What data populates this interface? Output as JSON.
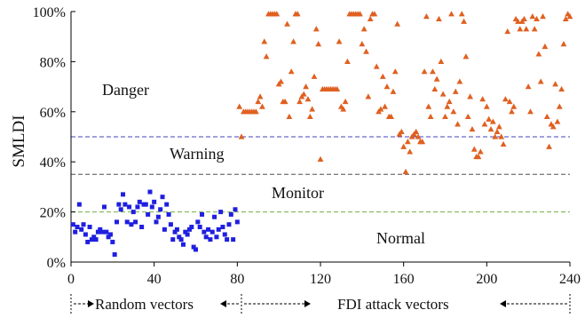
{
  "chart_data": {
    "type": "scatter",
    "ylabel": "SMLDI",
    "xlim": [
      0,
      240
    ],
    "ylim": [
      0,
      100
    ],
    "x_ticks": [
      "0",
      "40",
      "80",
      "120",
      "160",
      "200",
      "240"
    ],
    "y_ticks": [
      "0%",
      "20%",
      "40%",
      "60%",
      "80%",
      "100%"
    ],
    "legend": "none",
    "grid": false,
    "thresholds": [
      {
        "value": 50,
        "color": "#4040c0"
      },
      {
        "value": 35,
        "color": "#505050"
      },
      {
        "value": 20,
        "color": "#70b040"
      }
    ],
    "zone_labels": [
      "Danger",
      "Warning",
      "Monitor",
      "Normal"
    ],
    "group_labels": [
      "Random vectors",
      "FDI attack vectors"
    ],
    "series": [
      {
        "marker": "square",
        "color": "#1f1fe0",
        "points": [
          [
            1,
            15
          ],
          [
            2,
            12
          ],
          [
            3,
            14
          ],
          [
            4,
            23
          ],
          [
            5,
            13
          ],
          [
            6,
            15
          ],
          [
            7,
            11
          ],
          [
            8,
            8
          ],
          [
            9,
            14
          ],
          [
            10,
            9
          ],
          [
            11,
            10
          ],
          [
            12,
            9
          ],
          [
            13,
            12
          ],
          [
            14,
            13
          ],
          [
            15,
            12
          ],
          [
            16,
            22
          ],
          [
            17,
            12
          ],
          [
            18,
            10
          ],
          [
            19,
            11
          ],
          [
            20,
            8
          ],
          [
            21,
            3
          ],
          [
            22,
            16
          ],
          [
            23,
            23
          ],
          [
            24,
            21
          ],
          [
            25,
            27
          ],
          [
            26,
            23
          ],
          [
            27,
            16
          ],
          [
            28,
            22
          ],
          [
            29,
            15
          ],
          [
            30,
            20
          ],
          [
            31,
            16
          ],
          [
            32,
            22
          ],
          [
            33,
            24
          ],
          [
            34,
            14
          ],
          [
            35,
            23
          ],
          [
            36,
            23
          ],
          [
            37,
            19
          ],
          [
            38,
            28
          ],
          [
            39,
            22
          ],
          [
            40,
            24
          ],
          [
            41,
            16
          ],
          [
            42,
            18
          ],
          [
            43,
            21
          ],
          [
            44,
            26
          ],
          [
            45,
            13
          ],
          [
            46,
            23
          ],
          [
            47,
            19
          ],
          [
            48,
            15
          ],
          [
            49,
            9
          ],
          [
            50,
            12
          ],
          [
            51,
            13
          ],
          [
            52,
            10
          ],
          [
            53,
            9
          ],
          [
            54,
            7
          ],
          [
            55,
            12
          ],
          [
            56,
            11
          ],
          [
            57,
            13
          ],
          [
            58,
            14
          ],
          [
            59,
            6
          ],
          [
            60,
            5
          ],
          [
            61,
            16
          ],
          [
            62,
            14
          ],
          [
            63,
            19
          ],
          [
            64,
            12
          ],
          [
            65,
            10
          ],
          [
            66,
            13
          ],
          [
            67,
            9
          ],
          [
            68,
            12
          ],
          [
            69,
            18
          ],
          [
            70,
            10
          ],
          [
            71,
            13
          ],
          [
            72,
            20
          ],
          [
            73,
            14
          ],
          [
            74,
            11
          ],
          [
            75,
            9
          ],
          [
            76,
            15
          ],
          [
            77,
            19
          ],
          [
            78,
            9
          ],
          [
            79,
            21
          ],
          [
            80,
            16
          ]
        ]
      },
      {
        "marker": "triangle",
        "color": "#e06020",
        "points": [
          [
            81,
            62
          ],
          [
            82,
            50
          ],
          [
            83,
            60
          ],
          [
            84,
            60
          ],
          [
            85,
            60
          ],
          [
            86,
            60
          ],
          [
            87,
            60
          ],
          [
            88,
            60
          ],
          [
            89,
            60
          ],
          [
            90,
            64
          ],
          [
            91,
            66
          ],
          [
            92,
            62
          ],
          [
            93,
            88
          ],
          [
            94,
            82
          ],
          [
            95,
            99
          ],
          [
            96,
            99
          ],
          [
            97,
            99
          ],
          [
            98,
            99
          ],
          [
            99,
            99
          ],
          [
            100,
            71
          ],
          [
            101,
            72
          ],
          [
            102,
            64
          ],
          [
            103,
            64
          ],
          [
            104,
            95
          ],
          [
            105,
            58
          ],
          [
            106,
            76
          ],
          [
            107,
            88
          ],
          [
            108,
            99
          ],
          [
            109,
            99
          ],
          [
            110,
            64
          ],
          [
            111,
            66
          ],
          [
            112,
            67
          ],
          [
            113,
            70
          ],
          [
            114,
            65
          ],
          [
            115,
            58
          ],
          [
            116,
            61
          ],
          [
            117,
            74
          ],
          [
            118,
            93
          ],
          [
            119,
            87
          ],
          [
            120,
            41
          ],
          [
            121,
            69
          ],
          [
            122,
            69
          ],
          [
            123,
            69
          ],
          [
            124,
            69
          ],
          [
            125,
            69
          ],
          [
            126,
            69
          ],
          [
            127,
            69
          ],
          [
            128,
            69
          ],
          [
            129,
            88
          ],
          [
            130,
            62
          ],
          [
            131,
            61
          ],
          [
            132,
            64
          ],
          [
            133,
            80
          ],
          [
            134,
            99
          ],
          [
            135,
            99
          ],
          [
            136,
            99
          ],
          [
            137,
            99
          ],
          [
            138,
            99
          ],
          [
            139,
            99
          ],
          [
            140,
            87
          ],
          [
            141,
            93
          ],
          [
            142,
            84
          ],
          [
            143,
            66
          ],
          [
            144,
            97
          ],
          [
            145,
            99
          ],
          [
            146,
            99
          ],
          [
            147,
            78
          ],
          [
            148,
            60
          ],
          [
            149,
            61
          ],
          [
            150,
            74
          ],
          [
            151,
            62
          ],
          [
            152,
            70
          ],
          [
            153,
            58
          ],
          [
            154,
            58
          ],
          [
            155,
            68
          ],
          [
            156,
            76
          ],
          [
            157,
            95
          ],
          [
            158,
            51
          ],
          [
            159,
            52
          ],
          [
            160,
            46
          ],
          [
            161,
            36
          ],
          [
            162,
            48
          ],
          [
            163,
            44
          ],
          [
            164,
            50
          ],
          [
            165,
            51
          ],
          [
            166,
            52
          ],
          [
            167,
            50
          ],
          [
            168,
            48
          ],
          [
            169,
            48
          ],
          [
            170,
            76
          ],
          [
            171,
            98
          ],
          [
            172,
            62
          ],
          [
            173,
            58
          ],
          [
            174,
            76
          ],
          [
            175,
            69
          ],
          [
            176,
            73
          ],
          [
            177,
            97
          ],
          [
            178,
            80
          ],
          [
            179,
            67
          ],
          [
            180,
            58
          ],
          [
            181,
            62
          ],
          [
            182,
            64
          ],
          [
            183,
            99
          ],
          [
            184,
            60
          ],
          [
            185,
            68
          ],
          [
            186,
            55
          ],
          [
            187,
            72
          ],
          [
            188,
            99
          ],
          [
            189,
            96
          ],
          [
            190,
            82
          ],
          [
            191,
            58
          ],
          [
            192,
            66
          ],
          [
            193,
            53
          ],
          [
            194,
            45
          ],
          [
            195,
            42
          ],
          [
            196,
            42
          ],
          [
            197,
            44
          ],
          [
            198,
            65
          ],
          [
            199,
            55
          ],
          [
            200,
            62
          ],
          [
            201,
            57
          ],
          [
            202,
            53
          ],
          [
            203,
            56
          ],
          [
            204,
            50
          ],
          [
            205,
            52
          ],
          [
            206,
            54
          ],
          [
            207,
            50
          ],
          [
            208,
            47
          ],
          [
            209,
            65
          ],
          [
            210,
            92
          ],
          [
            211,
            64
          ],
          [
            212,
            60
          ],
          [
            213,
            62
          ],
          [
            214,
            97
          ],
          [
            215,
            96
          ],
          [
            216,
            93
          ],
          [
            217,
            96
          ],
          [
            218,
            97
          ],
          [
            219,
            93
          ],
          [
            220,
            70
          ],
          [
            221,
            60
          ],
          [
            222,
            98
          ],
          [
            223,
            93
          ],
          [
            224,
            97
          ],
          [
            225,
            83
          ],
          [
            226,
            72
          ],
          [
            227,
            98
          ],
          [
            228,
            86
          ],
          [
            229,
            58
          ],
          [
            230,
            46
          ],
          [
            231,
            55
          ],
          [
            232,
            54
          ],
          [
            233,
            71
          ],
          [
            234,
            56
          ],
          [
            235,
            62
          ],
          [
            236,
            69
          ],
          [
            237,
            87
          ],
          [
            238,
            97
          ],
          [
            239,
            99
          ],
          [
            240,
            98
          ]
        ]
      }
    ]
  }
}
